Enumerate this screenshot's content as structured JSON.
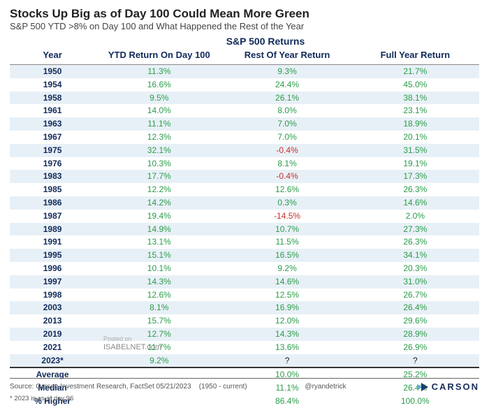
{
  "title": "Stocks Up Big as of Day 100 Could Mean More Green",
  "subtitle": "S&P 500 YTD >8% on Day 100 and What Happened the Rest of the Year",
  "supertitle": "S&P 500 Returns",
  "columns": [
    "Year",
    "YTD Return On Day 100",
    "Rest Of Year Return",
    "Full Year Return"
  ],
  "colors": {
    "header_text": "#102a5a",
    "stripe_bg": "#e8f0f7",
    "positive": "#2a9d4a",
    "negative": "#c6302b",
    "neutral": "#222222"
  },
  "rows": [
    {
      "year": "1950",
      "ytd": "11.3%",
      "rest": "9.3%",
      "full": "21.7%",
      "rest_neg": false
    },
    {
      "year": "1954",
      "ytd": "16.6%",
      "rest": "24.4%",
      "full": "45.0%",
      "rest_neg": false
    },
    {
      "year": "1958",
      "ytd": "9.5%",
      "rest": "26.1%",
      "full": "38.1%",
      "rest_neg": false
    },
    {
      "year": "1961",
      "ytd": "14.0%",
      "rest": "8.0%",
      "full": "23.1%",
      "rest_neg": false
    },
    {
      "year": "1963",
      "ytd": "11.1%",
      "rest": "7.0%",
      "full": "18.9%",
      "rest_neg": false
    },
    {
      "year": "1967",
      "ytd": "12.3%",
      "rest": "7.0%",
      "full": "20.1%",
      "rest_neg": false
    },
    {
      "year": "1975",
      "ytd": "32.1%",
      "rest": "-0.4%",
      "full": "31.5%",
      "rest_neg": true
    },
    {
      "year": "1976",
      "ytd": "10.3%",
      "rest": "8.1%",
      "full": "19.1%",
      "rest_neg": false
    },
    {
      "year": "1983",
      "ytd": "17.7%",
      "rest": "-0.4%",
      "full": "17.3%",
      "rest_neg": true
    },
    {
      "year": "1985",
      "ytd": "12.2%",
      "rest": "12.6%",
      "full": "26.3%",
      "rest_neg": false
    },
    {
      "year": "1986",
      "ytd": "14.2%",
      "rest": "0.3%",
      "full": "14.6%",
      "rest_neg": false
    },
    {
      "year": "1987",
      "ytd": "19.4%",
      "rest": "-14.5%",
      "full": "2.0%",
      "rest_neg": true
    },
    {
      "year": "1989",
      "ytd": "14.9%",
      "rest": "10.7%",
      "full": "27.3%",
      "rest_neg": false
    },
    {
      "year": "1991",
      "ytd": "13.1%",
      "rest": "11.5%",
      "full": "26.3%",
      "rest_neg": false
    },
    {
      "year": "1995",
      "ytd": "15.1%",
      "rest": "16.5%",
      "full": "34.1%",
      "rest_neg": false
    },
    {
      "year": "1996",
      "ytd": "10.1%",
      "rest": "9.2%",
      "full": "20.3%",
      "rest_neg": false
    },
    {
      "year": "1997",
      "ytd": "14.3%",
      "rest": "14.6%",
      "full": "31.0%",
      "rest_neg": false
    },
    {
      "year": "1998",
      "ytd": "12.6%",
      "rest": "12.5%",
      "full": "26.7%",
      "rest_neg": false
    },
    {
      "year": "2003",
      "ytd": "8.1%",
      "rest": "16.9%",
      "full": "26.4%",
      "rest_neg": false
    },
    {
      "year": "2013",
      "ytd": "15.7%",
      "rest": "12.0%",
      "full": "29.6%",
      "rest_neg": false
    },
    {
      "year": "2019",
      "ytd": "12.7%",
      "rest": "14.3%",
      "full": "28.9%",
      "rest_neg": false
    },
    {
      "year": "2021",
      "ytd": "11.7%",
      "rest": "13.6%",
      "full": "26.9%",
      "rest_neg": false
    },
    {
      "year": "2023*",
      "ytd": "9.2%",
      "rest": "?",
      "full": "?",
      "rest_neg": false,
      "neutral": true
    }
  ],
  "summary": [
    {
      "label": "Average",
      "ytd": "",
      "rest": "10.0%",
      "full": "25.2%"
    },
    {
      "label": "Median",
      "ytd": "",
      "rest": "11.1%",
      "full": "26.4%"
    },
    {
      "label": "% Higher",
      "ytd": "",
      "rest": "86.4%",
      "full": "100.0%"
    }
  ],
  "watermark": {
    "line1": "Posted on",
    "line2": "ISABELNET.com"
  },
  "footer": {
    "source": "Source: Carson Investment Research, FactSet 05/21/2023",
    "range": "(1950 - current)",
    "footnote": "* 2023 is as of day 96",
    "handle": "@ryandetrick",
    "brand": "CARSON"
  }
}
